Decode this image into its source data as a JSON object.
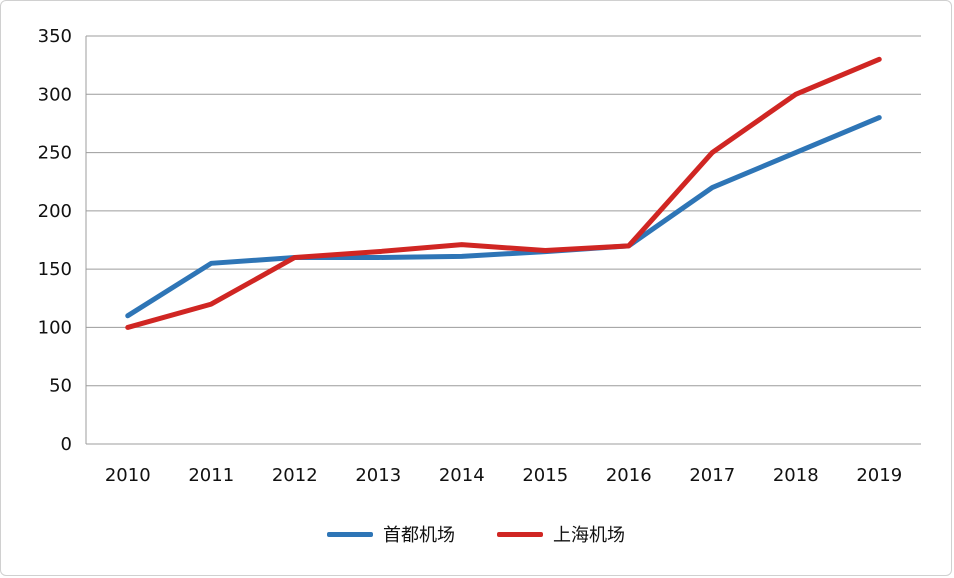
{
  "chart_data": {
    "type": "line",
    "title": "",
    "xlabel": "",
    "ylabel": "",
    "categories": [
      "2010",
      "2011",
      "2012",
      "2013",
      "2014",
      "2015",
      "2016",
      "2017",
      "2018",
      "2019"
    ],
    "series": [
      {
        "name": "首都机场",
        "color": "#2e75b6",
        "values": [
          110,
          155,
          160,
          160,
          161,
          165,
          170,
          220,
          250,
          280
        ]
      },
      {
        "name": "上海机场",
        "color": "#d02623",
        "values": [
          100,
          120,
          160,
          165,
          171,
          166,
          170,
          250,
          300,
          330
        ]
      }
    ],
    "ylim": [
      0,
      350
    ],
    "ytick_step": 50,
    "ytick_labels": [
      "0",
      "50",
      "100",
      "150",
      "200",
      "250",
      "300",
      "350"
    ],
    "grid": true,
    "legend_position": "bottom"
  }
}
